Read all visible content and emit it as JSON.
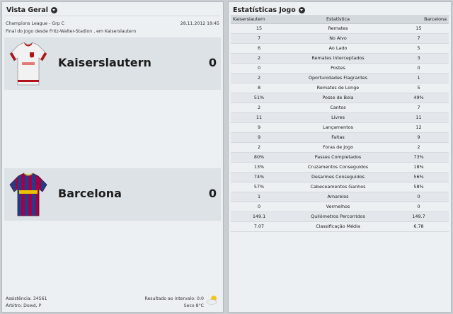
{
  "overview": {
    "title": "Vista Geral",
    "competition": "Champions League - Grp C",
    "date": "28.11.2012 19:45",
    "venue": "Final do Jogo desde Fritz-Walter-Stadion , em Kaiserslautern",
    "home": {
      "name": "Kaiserslautern",
      "score": "0",
      "kit_icon": "kaiserslautern-kit-icon"
    },
    "away": {
      "name": "Barcelona",
      "score": "0",
      "kit_icon": "barcelona-kit-icon"
    },
    "attendance": "Assistência: 34561",
    "referee": "Árbitro: Dowd, P",
    "halftime": "Resultado ao intervalo: 0:0",
    "weather": "Seco 8°C",
    "weather_icon": "partly-cloudy-icon"
  },
  "stats": {
    "title": "Estatísticas Jogo",
    "header": {
      "home": "Kaiserslautern",
      "label": "Estatística",
      "away": "Barcelona"
    },
    "rows": [
      {
        "home": "15",
        "label": "Remates",
        "away": "15"
      },
      {
        "home": "7",
        "label": "No Alvo",
        "away": "7"
      },
      {
        "home": "6",
        "label": "Ao Lado",
        "away": "5"
      },
      {
        "home": "2",
        "label": "Remates Interceptados",
        "away": "3"
      },
      {
        "home": "0",
        "label": "Postes",
        "away": "0"
      },
      {
        "home": "2",
        "label": "Oportunidades Flagrantes",
        "away": "1"
      },
      {
        "home": "8",
        "label": "Remates de Longe",
        "away": "5"
      },
      {
        "home": "51%",
        "label": "Posse de Bola",
        "away": "49%"
      },
      {
        "home": "2",
        "label": "Cantos",
        "away": "7"
      },
      {
        "home": "11",
        "label": "Livres",
        "away": "11"
      },
      {
        "home": "9",
        "label": "Lançamentos",
        "away": "12"
      },
      {
        "home": "9",
        "label": "Faltas",
        "away": "9"
      },
      {
        "home": "2",
        "label": "Foras de Jogo",
        "away": "2"
      },
      {
        "home": "80%",
        "label": "Passes Completados",
        "away": "73%"
      },
      {
        "home": "13%",
        "label": "Cruzamentos Conseguidos",
        "away": "18%"
      },
      {
        "home": "74%",
        "label": "Desarmes Conseguidos",
        "away": "56%"
      },
      {
        "home": "57%",
        "label": "Cabeceamentos Ganhos",
        "away": "58%"
      },
      {
        "home": "1",
        "label": "Amarelos",
        "away": "0"
      },
      {
        "home": "0",
        "label": "Vermelhos",
        "away": "0"
      },
      {
        "home": "149.1",
        "label": "Quilómetros Percorridos",
        "away": "149.7"
      },
      {
        "home": "7.07",
        "label": "Classificação Média",
        "away": "6.78"
      }
    ]
  },
  "colors": {
    "home_kit_primary": "#f2f2f2",
    "home_kit_accent": "#b3121b",
    "away_kit_primary": "#a50044",
    "away_kit_secondary": "#1b3f8f"
  }
}
